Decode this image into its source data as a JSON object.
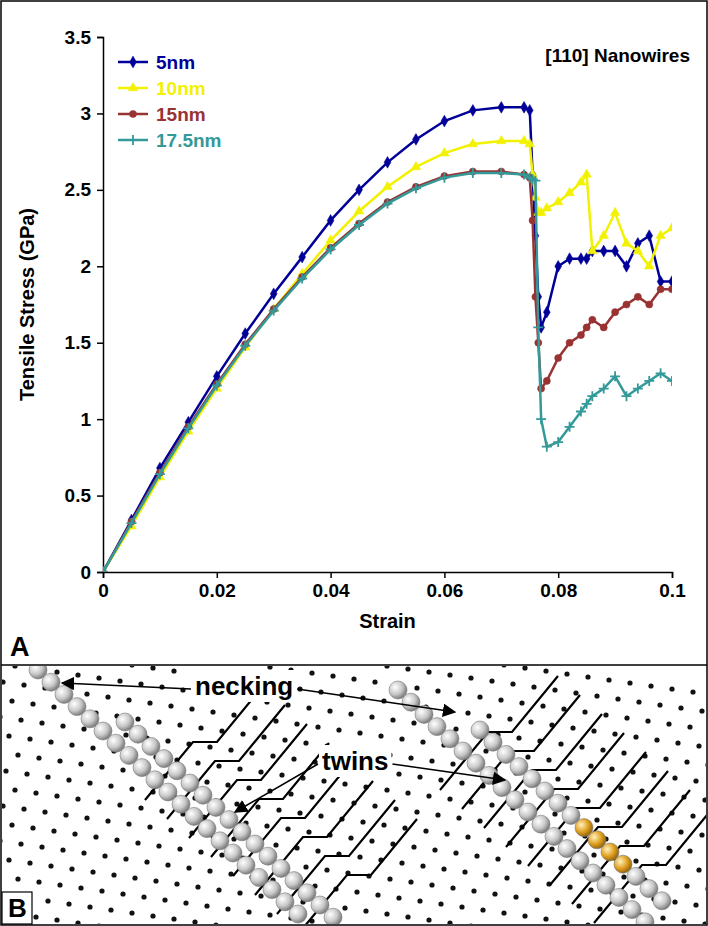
{
  "chart_data": {
    "type": "line",
    "panel_label": "A",
    "xlabel": "Strain",
    "ylabel": "Tensile Stress (GPa)",
    "annotations": [
      "[110] Nanowires"
    ],
    "x": [
      0,
      0.005,
      0.01,
      0.015,
      0.02,
      0.025,
      0.03,
      0.035,
      0.04,
      0.045,
      0.05,
      0.055,
      0.06,
      0.065,
      0.07,
      0.074,
      0.075,
      0.0755,
      0.076,
      0.0765,
      0.077,
      0.078,
      0.08,
      0.082,
      0.084,
      0.085,
      0.086,
      0.088,
      0.09,
      0.092,
      0.094,
      0.096,
      0.098,
      0.1
    ],
    "series": [
      {
        "name": "5nm",
        "color": "#000099",
        "marker": "diamond",
        "values": [
          0,
          0.34,
          0.68,
          0.98,
          1.28,
          1.56,
          1.82,
          2.06,
          2.3,
          2.5,
          2.68,
          2.83,
          2.95,
          3.02,
          3.04,
          3.04,
          3.02,
          2.6,
          2.2,
          1.8,
          1.6,
          1.7,
          2.0,
          2.05,
          2.05,
          2.05,
          2.1,
          2.1,
          2.1,
          2.0,
          2.15,
          2.2,
          1.9,
          1.9
        ]
      },
      {
        "name": "10nm",
        "color": "#f2f200",
        "marker": "triangle",
        "values": [
          0,
          0.3,
          0.62,
          0.92,
          1.2,
          1.47,
          1.72,
          1.95,
          2.17,
          2.36,
          2.52,
          2.65,
          2.74,
          2.8,
          2.82,
          2.82,
          2.8,
          2.6,
          2.45,
          2.35,
          2.35,
          2.38,
          2.42,
          2.48,
          2.55,
          2.6,
          2.1,
          2.2,
          2.35,
          2.15,
          2.1,
          2.0,
          2.2,
          2.25
        ]
      },
      {
        "name": "15nm",
        "color": "#993333",
        "marker": "circle",
        "values": [
          0,
          0.33,
          0.65,
          0.95,
          1.23,
          1.49,
          1.72,
          1.93,
          2.12,
          2.28,
          2.42,
          2.52,
          2.59,
          2.62,
          2.62,
          2.6,
          2.58,
          2.3,
          1.8,
          1.5,
          1.2,
          1.25,
          1.4,
          1.5,
          1.55,
          1.6,
          1.65,
          1.6,
          1.7,
          1.75,
          1.8,
          1.75,
          1.85,
          1.85
        ]
      },
      {
        "name": "17.5nm",
        "color": "#339999",
        "marker": "plus",
        "values": [
          0,
          0.32,
          0.64,
          0.94,
          1.22,
          1.48,
          1.71,
          1.92,
          2.11,
          2.27,
          2.41,
          2.51,
          2.58,
          2.61,
          2.61,
          2.6,
          2.58,
          2.57,
          2.56,
          1.6,
          1.0,
          0.82,
          0.85,
          0.95,
          1.05,
          1.1,
          1.15,
          1.2,
          1.28,
          1.15,
          1.2,
          1.25,
          1.3,
          1.25
        ]
      }
    ],
    "xlim": [
      0,
      0.1
    ],
    "ylim": [
      0,
      3.5
    ],
    "xticks": [
      0,
      0.02,
      0.04,
      0.06,
      0.08,
      0.1
    ],
    "yticks": [
      0,
      0.5,
      1,
      1.5,
      2,
      2.5,
      3,
      3.5
    ],
    "legend": "upper left",
    "grid": false
  },
  "diagram": {
    "panel_label": "B",
    "annotations": [
      "necking",
      "twins"
    ]
  }
}
